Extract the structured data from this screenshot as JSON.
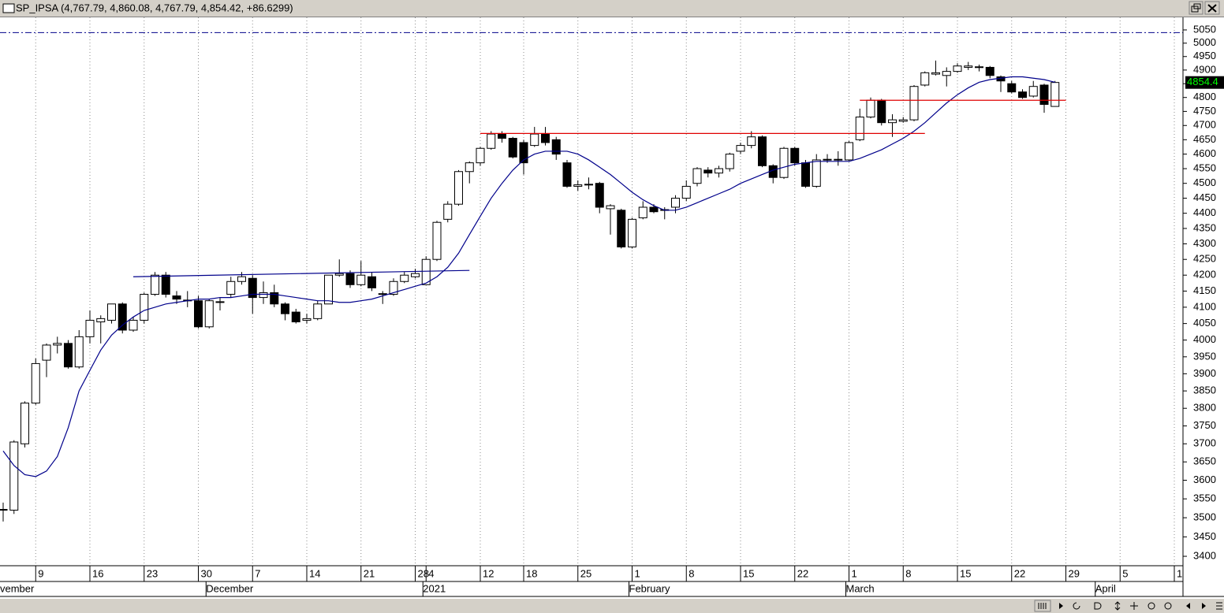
{
  "chart_data": {
    "type": "candlestick",
    "title": "SP_IPSA (4,767.79, 4,860.08, 4,767.79, 4,854.42, +86.6299)",
    "log_scale": true,
    "ylim": [
      3376,
      5098
    ],
    "yticks": [
      3400,
      3450,
      3500,
      3550,
      3600,
      3650,
      3700,
      3750,
      3800,
      3850,
      3900,
      3950,
      4000,
      4050,
      4100,
      4150,
      4200,
      4250,
      4300,
      4350,
      4400,
      4450,
      4500,
      4550,
      4600,
      4650,
      4700,
      4750,
      4800,
      4850,
      4900,
      4950,
      5000,
      5050
    ],
    "up_color": "#ffffff",
    "down_color": "#000000",
    "grid": true,
    "categories": [
      null,
      null,
      null,
      "9",
      null,
      null,
      null,
      null,
      "16",
      null,
      null,
      null,
      null,
      "23",
      null,
      null,
      null,
      null,
      "30",
      null,
      null,
      null,
      null,
      "7",
      null,
      null,
      null,
      null,
      "14",
      null,
      null,
      null,
      null,
      "21",
      null,
      null,
      null,
      null,
      "28",
      "4",
      null,
      null,
      null,
      null,
      "12",
      null,
      null,
      null,
      "18",
      null,
      null,
      null,
      null,
      "25",
      null,
      null,
      null,
      null,
      "1",
      null,
      null,
      null,
      null,
      "8",
      null,
      null,
      null,
      null,
      "15",
      null,
      null,
      null,
      null,
      "22",
      null,
      null,
      null,
      null,
      "1",
      null,
      null,
      null,
      null,
      "8",
      null,
      null,
      null,
      null,
      "15",
      null,
      null,
      null,
      null,
      "22",
      null,
      null,
      null,
      null,
      "29",
      null,
      null,
      null,
      null,
      "5",
      null,
      null,
      null,
      null,
      "1"
    ],
    "months": [
      "vember",
      null,
      null,
      null,
      null,
      null,
      null,
      null,
      null,
      null,
      null,
      null,
      null,
      null,
      null,
      null,
      null,
      null,
      null,
      "December",
      null,
      null,
      null,
      null,
      null,
      null,
      null,
      null,
      null,
      null,
      null,
      null,
      null,
      null,
      null,
      null,
      null,
      null,
      null,
      "2021",
      null,
      null,
      null,
      null,
      null,
      null,
      null,
      null,
      null,
      null,
      null,
      null,
      null,
      null,
      null,
      null,
      null,
      null,
      "February",
      null,
      null,
      null,
      null,
      null,
      null,
      null,
      null,
      null,
      null,
      null,
      null,
      null,
      null,
      null,
      null,
      null,
      null,
      null,
      "March",
      null,
      null,
      null,
      null,
      null,
      null,
      null,
      null,
      null,
      null,
      null,
      null,
      null,
      null,
      null,
      null,
      null,
      null,
      null,
      null,
      null,
      null,
      "April",
      null,
      null,
      null,
      null,
      null,
      null,
      null
    ],
    "open": [
      3520,
      3520,
      3700,
      3815,
      3940,
      3985,
      3990,
      3920,
      4010,
      4055,
      4060,
      4110,
      4030,
      4060,
      4140,
      4200,
      4135,
      4120,
      4120,
      4040,
      4115,
      4140,
      4180,
      4190,
      4130,
      4145,
      4110,
      4085,
      4060,
      4065,
      4110,
      4200,
      4205,
      4170,
      4195,
      4140,
      4140,
      4180,
      4195,
      4170,
      4250,
      4380,
      4430,
      4540,
      4570,
      4620,
      4670,
      4655,
      4640,
      4630,
      4670,
      4650,
      4570,
      4490,
      4495,
      4500,
      4415,
      4410,
      4290,
      4385,
      4420,
      4410,
      4420,
      4450,
      4500,
      4545,
      4535,
      4550,
      4610,
      4630,
      4660,
      4560,
      4520,
      4620,
      4570,
      4490,
      4580,
      4580,
      4580,
      4650,
      4730,
      4790,
      4710,
      4715,
      4720,
      4845,
      4885,
      4880,
      4895,
      4910,
      4910,
      4910,
      4875,
      4850,
      4820,
      4805,
      4845,
      4767.79,
      null,
      null,
      null,
      null,
      null,
      null,
      null,
      null,
      null,
      null,
      null
    ],
    "high": [
      3540,
      3710,
      3820,
      3945,
      3990,
      4010,
      4000,
      4030,
      4090,
      4075,
      4110,
      4115,
      4070,
      4145,
      4210,
      4210,
      4150,
      4150,
      4135,
      4125,
      4130,
      4195,
      4210,
      4200,
      4180,
      4170,
      4115,
      4095,
      4080,
      4120,
      4200,
      4250,
      4215,
      4245,
      4210,
      4150,
      4190,
      4210,
      4220,
      4260,
      4375,
      4440,
      4545,
      4575,
      4625,
      4680,
      4680,
      4660,
      4650,
      4695,
      4695,
      4660,
      4580,
      4510,
      4520,
      4505,
      4430,
      4415,
      4385,
      4440,
      4430,
      4420,
      4460,
      4510,
      4555,
      4555,
      4560,
      4605,
      4640,
      4680,
      4665,
      4565,
      4625,
      4625,
      4580,
      4600,
      4600,
      4610,
      4645,
      4760,
      4800,
      4795,
      4740,
      4730,
      4845,
      4895,
      4935,
      4910,
      4925,
      4930,
      4920,
      4915,
      4880,
      4860,
      4830,
      4860,
      4850,
      4860.08,
      null,
      null,
      null,
      null,
      null,
      null,
      null,
      null,
      null,
      null,
      null
    ],
    "low": [
      3490,
      3510,
      3690,
      3810,
      3890,
      3960,
      3915,
      3915,
      3990,
      3990,
      4050,
      4020,
      4025,
      4050,
      4135,
      4130,
      4110,
      4100,
      4035,
      4035,
      4090,
      4130,
      4170,
      4080,
      4110,
      4100,
      4060,
      4050,
      4050,
      4060,
      4110,
      4195,
      4160,
      4165,
      4150,
      4110,
      4135,
      4175,
      4190,
      4170,
      4245,
      4370,
      4425,
      4500,
      4560,
      4615,
      4640,
      4585,
      4530,
      4625,
      4630,
      4580,
      4485,
      4475,
      4480,
      4400,
      4330,
      4285,
      4285,
      4380,
      4400,
      4380,
      4400,
      4440,
      4490,
      4520,
      4520,
      4540,
      4600,
      4620,
      4555,
      4500,
      4515,
      4560,
      4485,
      4485,
      4570,
      4560,
      4575,
      4645,
      4725,
      4700,
      4660,
      4710,
      4715,
      4840,
      4880,
      4840,
      4890,
      4900,
      4895,
      4870,
      4820,
      4815,
      4795,
      4800,
      4745,
      4767.79,
      null,
      null,
      null,
      null,
      null,
      null,
      null,
      null,
      null,
      null,
      null
    ],
    "close": [
      3522,
      3705,
      3815,
      3930,
      3985,
      3990,
      3920,
      4010,
      4060,
      4065,
      4110,
      4030,
      4060,
      4140,
      4200,
      4140,
      4125,
      4122,
      4040,
      4120,
      4117,
      4180,
      4195,
      4130,
      4145,
      4110,
      4080,
      4055,
      4065,
      4110,
      4200,
      4205,
      4170,
      4200,
      4160,
      4142,
      4180,
      4200,
      4205,
      4250,
      4370,
      4430,
      4540,
      4570,
      4620,
      4670,
      4655,
      4590,
      4570,
      4670,
      4640,
      4600,
      4490,
      4495,
      4497,
      4420,
      4425,
      4290,
      4380,
      4420,
      4405,
      4412,
      4450,
      4490,
      4550,
      4535,
      4550,
      4600,
      4630,
      4660,
      4560,
      4520,
      4620,
      4570,
      4490,
      4580,
      4582,
      4582,
      4640,
      4730,
      4790,
      4710,
      4720,
      4720,
      4840,
      4890,
      4890,
      4895,
      4915,
      4915,
      4912,
      4880,
      4860,
      4820,
      4800,
      4840,
      4775,
      4854.42,
      null,
      null,
      null,
      null,
      null,
      null,
      null,
      null,
      null,
      null,
      null
    ],
    "ma": {
      "color": "#00008b",
      "values": [
        3680,
        3640,
        3615,
        3610,
        3625,
        3665,
        3745,
        3850,
        3910,
        3970,
        4015,
        4045,
        4070,
        4090,
        4100,
        4110,
        4115,
        4120,
        4125,
        4125,
        4130,
        4130,
        4135,
        4140,
        4140,
        4140,
        4135,
        4130,
        4125,
        4120,
        4120,
        4115,
        4115,
        4120,
        4125,
        4135,
        4145,
        4155,
        4165,
        4175,
        4195,
        4225,
        4270,
        4330,
        4390,
        4450,
        4500,
        4545,
        4580,
        4600,
        4610,
        4610,
        4610,
        4600,
        4580,
        4555,
        4530,
        4500,
        4470,
        4445,
        4425,
        4410,
        4410,
        4420,
        4435,
        4450,
        4465,
        4480,
        4500,
        4515,
        4530,
        4545,
        4555,
        4565,
        4570,
        4575,
        4575,
        4575,
        4575,
        4585,
        4600,
        4615,
        4635,
        4655,
        4680,
        4710,
        4745,
        4780,
        4810,
        4835,
        4855,
        4865,
        4870,
        4875,
        4875,
        4870,
        4865,
        4855,
        null,
        null,
        null,
        null,
        null,
        null,
        null,
        null,
        null,
        null,
        null
      ]
    },
    "trend_lines": [
      {
        "color": "#00008b",
        "from": [
          12,
          4195
        ],
        "to": [
          43,
          4215
        ]
      },
      {
        "color": "#e00000",
        "from": [
          44,
          4672
        ],
        "to": [
          85,
          4672
        ]
      },
      {
        "color": "#e00000",
        "from": [
          79,
          4790
        ],
        "to": [
          98,
          4790
        ]
      }
    ],
    "reference_line": {
      "value": 5040,
      "color": "#00008b"
    },
    "last_price_label": 4854.4
  }
}
